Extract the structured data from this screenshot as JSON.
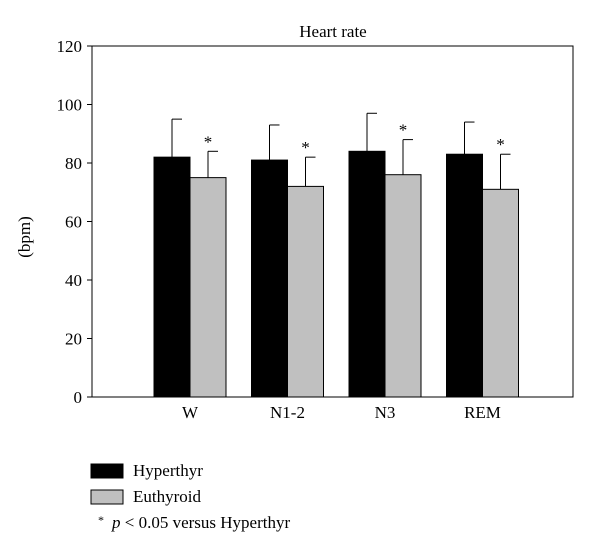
{
  "chart_data": {
    "type": "bar",
    "title": "Heart rate",
    "ylabel": "(bpm)",
    "xlabel": "",
    "categories": [
      "W",
      "N1-2",
      "N3",
      "REM"
    ],
    "ylim": [
      0,
      120
    ],
    "yticks": [
      0,
      20,
      40,
      60,
      80,
      100,
      120
    ],
    "ytick_labels": [
      "0",
      "20",
      "40",
      "60",
      "80",
      "100",
      "120"
    ],
    "series": [
      {
        "name": "Hyperthyr",
        "color": "#000000",
        "values": [
          82,
          81,
          84,
          83
        ],
        "error": [
          13,
          12,
          13,
          11
        ]
      },
      {
        "name": "Euthyroid",
        "color": "#c0c0c0",
        "values": [
          75,
          72,
          76,
          71
        ],
        "error": [
          9,
          10,
          12,
          12
        ]
      }
    ],
    "significance": [
      true,
      true,
      true,
      true
    ],
    "significance_marker": "*",
    "grid": false,
    "legend_position": "bottom-left"
  },
  "footnote": {
    "marker": "*",
    "italic": "p",
    "rest": " < 0.05 versus Hyperthyr"
  }
}
